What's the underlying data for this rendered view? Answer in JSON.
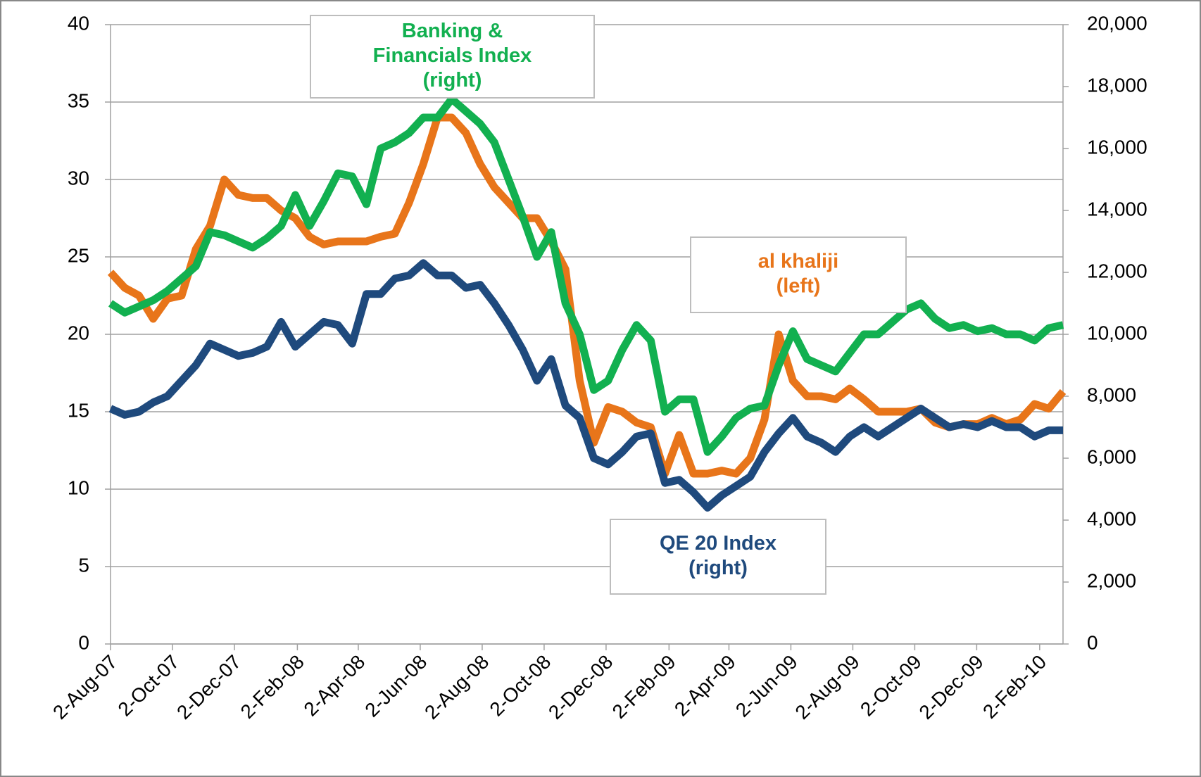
{
  "chart_data": {
    "type": "line",
    "x": [
      "2007-08-02",
      "2007-08-16",
      "2007-08-30",
      "2007-09-13",
      "2007-09-27",
      "2007-10-11",
      "2007-10-25",
      "2007-11-08",
      "2007-11-22",
      "2007-12-06",
      "2007-12-20",
      "2008-01-03",
      "2008-01-17",
      "2008-01-31",
      "2008-02-14",
      "2008-02-28",
      "2008-03-13",
      "2008-03-27",
      "2008-04-10",
      "2008-04-24",
      "2008-05-08",
      "2008-05-22",
      "2008-06-05",
      "2008-06-19",
      "2008-07-03",
      "2008-07-17",
      "2008-07-31",
      "2008-08-14",
      "2008-08-28",
      "2008-09-11",
      "2008-09-25",
      "2008-10-09",
      "2008-10-23",
      "2008-11-06",
      "2008-11-20",
      "2008-12-04",
      "2008-12-18",
      "2009-01-01",
      "2009-01-15",
      "2009-01-29",
      "2009-02-12",
      "2009-02-26",
      "2009-03-12",
      "2009-03-26",
      "2009-04-09",
      "2009-04-23",
      "2009-05-07",
      "2009-05-21",
      "2009-06-04",
      "2009-06-18",
      "2009-07-02",
      "2009-07-16",
      "2009-07-30",
      "2009-08-13",
      "2009-08-27",
      "2009-09-10",
      "2009-09-24",
      "2009-10-08",
      "2009-10-22",
      "2009-11-05",
      "2009-11-19",
      "2009-12-03",
      "2009-12-17",
      "2009-12-31",
      "2010-01-14",
      "2010-01-28",
      "2010-02-11",
      "2010-02-25"
    ],
    "series": [
      {
        "name": [
          "al khaliji"
        ],
        "axis_label": "(left)",
        "color": "#e8751a",
        "axis": "y",
        "values": [
          24,
          23,
          22.5,
          21,
          22.3,
          22.5,
          25.5,
          27,
          30,
          29,
          28.8,
          28.8,
          28,
          27.5,
          26.3,
          25.8,
          26,
          26,
          26,
          26.3,
          26.5,
          28.5,
          31,
          34,
          34,
          33,
          31,
          29.5,
          28.5,
          27.5,
          27.5,
          26,
          24.2,
          17,
          13,
          15.3,
          15,
          14.3,
          14,
          11,
          13.5,
          11,
          11,
          11.2,
          11,
          12,
          14.5,
          20,
          17,
          16,
          16,
          15.8,
          16.5,
          15.8,
          15,
          15,
          15,
          15.2,
          14.3,
          14,
          14.2,
          14.2,
          14.6,
          14.2,
          14.5,
          15.5,
          15.2,
          16.3
        ]
      },
      {
        "name": [
          "Banking &",
          "Financials Index"
        ],
        "axis_label": "(right)",
        "color": "#12b050",
        "axis": "y2",
        "values": [
          11000,
          10700,
          10900,
          11100,
          11400,
          11800,
          12200,
          13300,
          13200,
          13000,
          12800,
          13100,
          13500,
          14500,
          13500,
          14300,
          15200,
          15100,
          14200,
          16000,
          16200,
          16500,
          17000,
          17000,
          17600,
          17200,
          16800,
          16200,
          15000,
          13800,
          12500,
          13300,
          11000,
          10000,
          8200,
          8500,
          9500,
          10300,
          9800,
          7500,
          7900,
          7900,
          6200,
          6700,
          7300,
          7600,
          7700,
          9000,
          10100,
          9200,
          9000,
          8800,
          9400,
          10000,
          10000,
          10400,
          10800,
          11000,
          10500,
          10200,
          10300,
          10100,
          10200,
          10000,
          10000,
          9800,
          10200,
          10300
        ]
      },
      {
        "name": [
          "QE 20 Index"
        ],
        "axis_label": "(right)",
        "color": "#1f4a7d",
        "axis": "y2",
        "values": [
          7600,
          7400,
          7500,
          7800,
          8000,
          8500,
          9000,
          9700,
          9500,
          9300,
          9400,
          9600,
          10400,
          9600,
          10000,
          10400,
          10300,
          9700,
          11300,
          11300,
          11800,
          11900,
          12300,
          11900,
          11900,
          11500,
          11600,
          11000,
          10300,
          9500,
          8500,
          9200,
          7700,
          7300,
          6000,
          5800,
          6200,
          6700,
          6800,
          5200,
          5300,
          4900,
          4400,
          4800,
          5100,
          5400,
          6200,
          6800,
          7300,
          6700,
          6500,
          6200,
          6700,
          7000,
          6700,
          7000,
          7300,
          7600,
          7300,
          7000,
          7100,
          7000,
          7200,
          7000,
          7000,
          6700,
          6900,
          6900
        ]
      }
    ],
    "xlim": [
      "2007-08-02",
      "2010-02-25"
    ],
    "xticks": [
      {
        "value": "2007-08-02",
        "label": "2-Aug-07"
      },
      {
        "value": "2007-10-02",
        "label": "2-Oct-07"
      },
      {
        "value": "2007-12-02",
        "label": "2-Dec-07"
      },
      {
        "value": "2008-02-02",
        "label": "2-Feb-08"
      },
      {
        "value": "2008-04-02",
        "label": "2-Apr-08"
      },
      {
        "value": "2008-06-02",
        "label": "2-Jun-08"
      },
      {
        "value": "2008-08-02",
        "label": "2-Aug-08"
      },
      {
        "value": "2008-10-02",
        "label": "2-Oct-08"
      },
      {
        "value": "2008-12-02",
        "label": "2-Dec-08"
      },
      {
        "value": "2009-02-02",
        "label": "2-Feb-09"
      },
      {
        "value": "2009-04-02",
        "label": "2-Apr-09"
      },
      {
        "value": "2009-06-02",
        "label": "2-Jun-09"
      },
      {
        "value": "2009-08-02",
        "label": "2-Aug-09"
      },
      {
        "value": "2009-10-02",
        "label": "2-Oct-09"
      },
      {
        "value": "2009-12-02",
        "label": "2-Dec-09"
      },
      {
        "value": "2010-02-02",
        "label": "2-Feb-10"
      }
    ],
    "ylim": [
      0,
      40
    ],
    "yticks": [
      0,
      5,
      10,
      15,
      20,
      25,
      30,
      35,
      40
    ],
    "y2lim": [
      0,
      20000
    ],
    "y2ticks": [
      0,
      {
        "value": 2000,
        "label": "2,000"
      },
      {
        "value": 4000,
        "label": "4,000"
      },
      {
        "value": 6000,
        "label": "6,000"
      },
      {
        "value": 8000,
        "label": "8,000"
      },
      {
        "value": 10000,
        "label": "10,000"
      },
      {
        "value": 12000,
        "label": "12,000"
      },
      {
        "value": 14000,
        "label": "14,000"
      },
      {
        "value": 16000,
        "label": "16,000"
      },
      {
        "value": 18000,
        "label": "18,000"
      },
      {
        "value": 20000,
        "label": "20,000"
      }
    ],
    "grid": true
  }
}
